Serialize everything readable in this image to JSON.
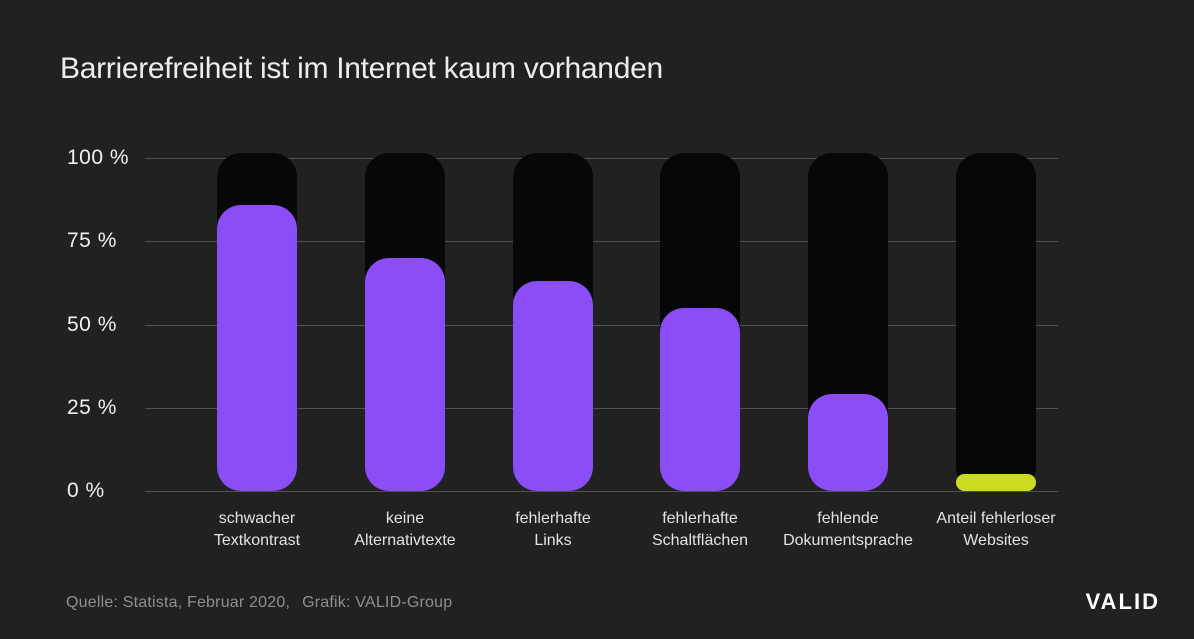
{
  "title": "Barrierefreiheit ist im Internet kaum vorhanden",
  "footer": {
    "source": "Quelle: Statista, Februar 2020,",
    "credit": "Grafik: VALID-Group",
    "logo": "VALID"
  },
  "colors": {
    "background": "#212121",
    "bar_track": "#070707",
    "bar_fill": "#8A4DF6",
    "highlight_fill": "#C9DC1E",
    "gridline": "rgba(255,255,255,0.22)",
    "title_text": "#ededed",
    "axis_text": "#f0f0f0",
    "category_text": "#e3e3e3",
    "footer_text": "#8f8f8f"
  },
  "chart_data": {
    "type": "bar",
    "title": "Barrierefreiheit ist im Internet kaum vorhanden",
    "categories": [
      "schwacher Textkontrast",
      "keine Alternativtexte",
      "fehlerhafte Links",
      "fehlerhafte Schaltflächen",
      "fehlende Dokumentsprache",
      "Anteil fehlerloser Websites"
    ],
    "category_lines": [
      [
        "schwacher",
        "Textkontrast"
      ],
      [
        "keine",
        "Alternativtexte"
      ],
      [
        "fehlerhafte",
        "Links"
      ],
      [
        "fehlerhafte",
        "Schaltflächen"
      ],
      [
        "fehlende",
        "Dokumentsprache"
      ],
      [
        "Anteil fehlerloser",
        "Websites"
      ]
    ],
    "values": [
      86,
      70,
      63,
      55,
      29,
      5
    ],
    "unit": "%",
    "highlight_index": 5,
    "xlabel": "",
    "ylabel": "",
    "ylim": [
      0,
      100
    ],
    "yticks": [
      "100 %",
      "75 %",
      "50 %",
      "25 %",
      "0 %"
    ],
    "grid": true,
    "legend": false
  }
}
